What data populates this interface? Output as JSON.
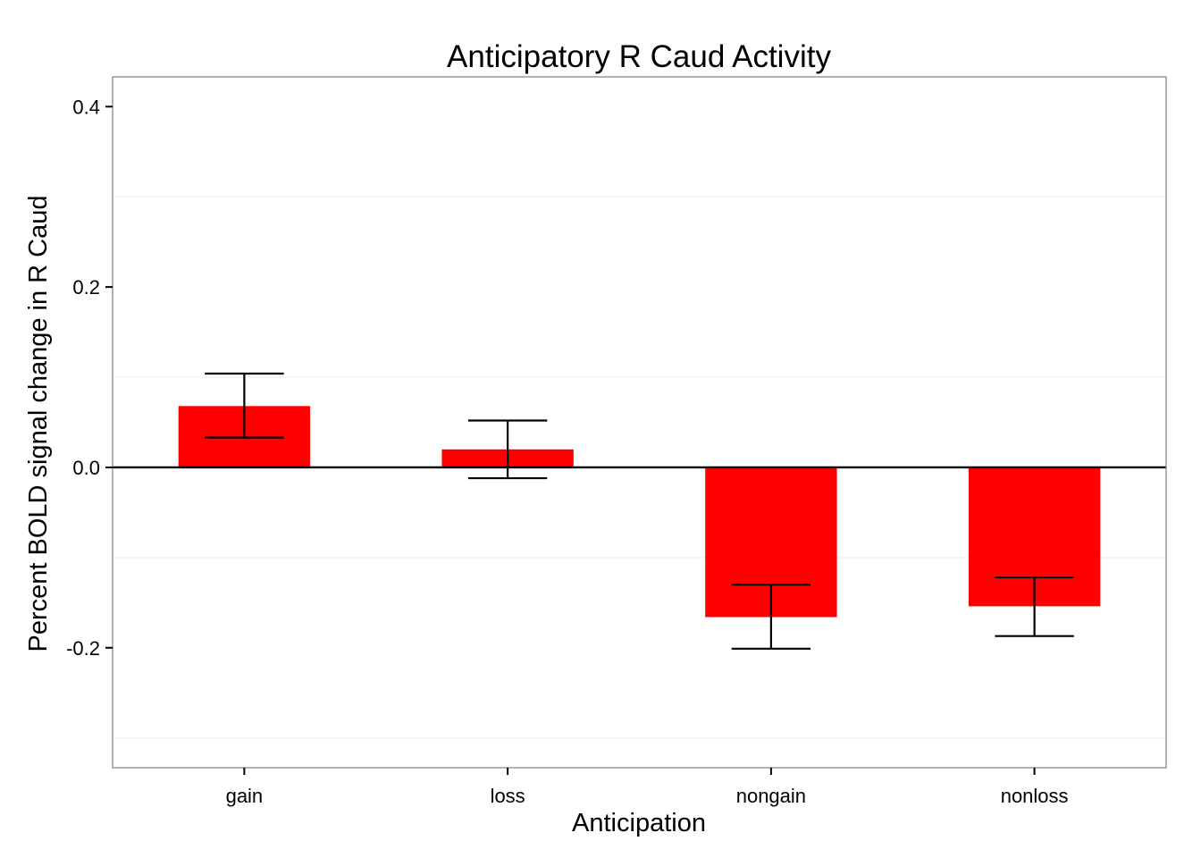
{
  "chart_data": {
    "type": "bar",
    "title": "Anticipatory R Caud Activity",
    "xlabel": "Anticipation",
    "ylabel": "Percent BOLD signal change in R Caud",
    "categories": [
      "gain",
      "loss",
      "nongain",
      "nonloss"
    ],
    "values": [
      0.068,
      0.02,
      -0.166,
      -0.154
    ],
    "error_low": [
      0.033,
      -0.012,
      -0.201,
      -0.187
    ],
    "error_high": [
      0.104,
      0.052,
      -0.13,
      -0.122
    ],
    "ylim": [
      -0.333,
      0.433
    ],
    "yticks": [
      -0.2,
      0.0,
      0.2,
      0.4
    ],
    "ytick_labels": [
      "-0.2",
      "0.0",
      "0.2",
      "0.4"
    ],
    "grid": true,
    "legend": "none",
    "bar_color": "#ff0000",
    "reference_line": 0
  }
}
